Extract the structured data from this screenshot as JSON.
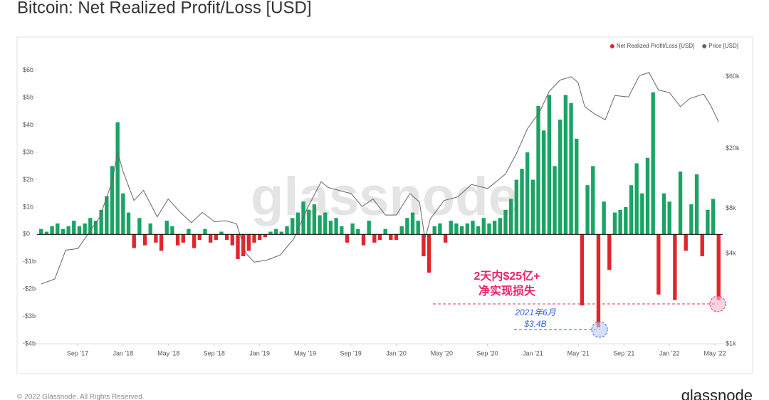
{
  "chart_data": {
    "type": "bar",
    "title": "Bitcoin: Net Realized Profit/Loss [USD]",
    "xlim": [
      2017.37,
      2022.39
    ],
    "xticks": [
      {
        "value": 2017.667,
        "label": "Sep '17"
      },
      {
        "value": 2018.0,
        "label": "Jan '18"
      },
      {
        "value": 2018.333,
        "label": "May '18"
      },
      {
        "value": 2018.667,
        "label": "Sep '18"
      },
      {
        "value": 2019.0,
        "label": "Jan '19"
      },
      {
        "value": 2019.333,
        "label": "May '19"
      },
      {
        "value": 2019.667,
        "label": "Sep '19"
      },
      {
        "value": 2020.0,
        "label": "Jan '20"
      },
      {
        "value": 2020.333,
        "label": "May '20"
      },
      {
        "value": 2020.667,
        "label": "Sep '20"
      },
      {
        "value": 2021.0,
        "label": "Jan '21"
      },
      {
        "value": 2021.333,
        "label": "May '21"
      },
      {
        "value": 2021.667,
        "label": "Sep '21"
      },
      {
        "value": 2022.0,
        "label": "Jan '22"
      },
      {
        "value": 2022.333,
        "label": "May '22"
      }
    ],
    "ylim": [
      -4,
      6.1
    ],
    "yticks": [
      {
        "value": -4,
        "label": "-$4b"
      },
      {
        "value": -3,
        "label": "-$3b"
      },
      {
        "value": -2,
        "label": "-$2b"
      },
      {
        "value": -1,
        "label": "-$1b"
      },
      {
        "value": 0,
        "label": "$0"
      },
      {
        "value": 1,
        "label": "$1b"
      },
      {
        "value": 2,
        "label": "$2b"
      },
      {
        "value": 3,
        "label": "$3b"
      },
      {
        "value": 4,
        "label": "$4b"
      },
      {
        "value": 5,
        "label": "$5b"
      },
      {
        "value": 6,
        "label": "$6b"
      }
    ],
    "y2lim": [
      1000,
      69000
    ],
    "y2scale": "log",
    "y2ticks": [
      {
        "value": 1000,
        "label": "$1k"
      },
      {
        "value": 4000,
        "label": "$4k"
      },
      {
        "value": 8000,
        "label": "$8k"
      },
      {
        "value": 20000,
        "label": "$20k"
      },
      {
        "value": 60000,
        "label": "$60k"
      }
    ],
    "legend": "top-right",
    "series": [
      {
        "name": "Net Realized Profit/Loss [USD]",
        "color": "#e0262b",
        "color_positive": "#1aa364",
        "x": [
          2017.4,
          2017.44,
          2017.48,
          2017.52,
          2017.56,
          2017.6,
          2017.64,
          2017.68,
          2017.72,
          2017.76,
          2017.8,
          2017.84,
          2017.88,
          2017.92,
          2017.96,
          2018,
          2018.04,
          2018.08,
          2018.12,
          2018.16,
          2018.2,
          2018.24,
          2018.28,
          2018.32,
          2018.36,
          2018.4,
          2018.44,
          2018.48,
          2018.52,
          2018.56,
          2018.6,
          2018.64,
          2018.68,
          2018.72,
          2018.76,
          2018.8,
          2018.84,
          2018.88,
          2018.92,
          2018.96,
          2019,
          2019.04,
          2019.08,
          2019.12,
          2019.16,
          2019.2,
          2019.24,
          2019.28,
          2019.32,
          2019.36,
          2019.4,
          2019.44,
          2019.48,
          2019.52,
          2019.56,
          2019.6,
          2019.64,
          2019.68,
          2019.72,
          2019.76,
          2019.8,
          2019.84,
          2019.88,
          2019.92,
          2019.96,
          2020,
          2020.04,
          2020.08,
          2020.12,
          2020.16,
          2020.2,
          2020.24,
          2020.28,
          2020.32,
          2020.36,
          2020.4,
          2020.44,
          2020.48,
          2020.52,
          2020.56,
          2020.6,
          2020.64,
          2020.68,
          2020.72,
          2020.76,
          2020.8,
          2020.84,
          2020.88,
          2020.92,
          2020.96,
          2021,
          2021.04,
          2021.08,
          2021.12,
          2021.16,
          2021.2,
          2021.24,
          2021.28,
          2021.32,
          2021.36,
          2021.4,
          2021.44,
          2021.48,
          2021.52,
          2021.56,
          2021.6,
          2021.64,
          2021.68,
          2021.72,
          2021.76,
          2021.8,
          2021.84,
          2021.88,
          2021.92,
          2021.96,
          2022,
          2022.04,
          2022.08,
          2022.12,
          2022.16,
          2022.2,
          2022.24,
          2022.28,
          2022.32,
          2022.36
        ],
        "values": [
          0.2,
          0.1,
          0.3,
          0.4,
          0.2,
          0.3,
          0.5,
          0.3,
          0.4,
          0.6,
          0.5,
          0.9,
          1.4,
          2.5,
          4.1,
          1.5,
          0.8,
          -0.5,
          0.6,
          -0.4,
          0.4,
          -0.3,
          -0.6,
          0.5,
          0.3,
          -0.4,
          -0.3,
          0.2,
          -0.5,
          -0.2,
          0.2,
          -0.3,
          -0.2,
          0.1,
          -0.2,
          -0.4,
          -0.9,
          -0.8,
          -0.6,
          -0.3,
          -0.2,
          -0.1,
          0.1,
          0.2,
          0.1,
          0.3,
          0.6,
          0.8,
          1.2,
          0.9,
          1.1,
          0.7,
          0.8,
          0.5,
          0.6,
          0.3,
          -0.3,
          0.4,
          0.2,
          -0.4,
          0.5,
          -0.3,
          -0.2,
          0.2,
          -0.2,
          -0.2,
          0.3,
          0.6,
          0.8,
          0.5,
          -0.8,
          -1.4,
          0.3,
          0.4,
          -0.3,
          0.5,
          0.4,
          0.3,
          0.4,
          0.5,
          0.3,
          0.6,
          0.4,
          0.5,
          0.6,
          0.9,
          1.3,
          2.0,
          2.4,
          3.0,
          2.0,
          4.7,
          3.8,
          5.1,
          2.5,
          4.2,
          5.1,
          4.8,
          3.5,
          -2.6,
          1.8,
          2.5,
          -3.4,
          1.2,
          -1.3,
          0.8,
          0.9,
          1.0,
          1.8,
          2.6,
          1.5,
          2.8,
          5.2,
          -2.2,
          1.5,
          1.2,
          -2.4,
          2.3,
          -0.6,
          1.1,
          2.2,
          -0.8,
          0.9,
          1.3,
          -2.4
        ]
      },
      {
        "name": "Price [USD]",
        "color": "#666666",
        "axis": "y2",
        "x": [
          2017.4,
          2017.5,
          2017.58,
          2017.67,
          2017.75,
          2017.83,
          2017.92,
          2017.96,
          2018.0,
          2018.08,
          2018.15,
          2018.25,
          2018.33,
          2018.42,
          2018.5,
          2018.58,
          2018.67,
          2018.75,
          2018.83,
          2018.9,
          2018.96,
          2019.05,
          2019.15,
          2019.25,
          2019.35,
          2019.45,
          2019.5,
          2019.58,
          2019.67,
          2019.75,
          2019.83,
          2019.92,
          2020.0,
          2020.1,
          2020.17,
          2020.21,
          2020.25,
          2020.35,
          2020.45,
          2020.55,
          2020.67,
          2020.8,
          2020.88,
          2020.96,
          2021.05,
          2021.12,
          2021.2,
          2021.28,
          2021.33,
          2021.38,
          2021.45,
          2021.53,
          2021.6,
          2021.7,
          2021.78,
          2021.85,
          2021.92,
          2022.0,
          2022.08,
          2022.15,
          2022.25,
          2022.3,
          2022.36
        ],
        "values": [
          2500,
          2700,
          4200,
          4300,
          5500,
          7000,
          12000,
          19000,
          14000,
          9000,
          10500,
          7000,
          9200,
          7500,
          6400,
          7500,
          6500,
          6600,
          6300,
          4000,
          3500,
          3600,
          3900,
          5000,
          8000,
          12000,
          11000,
          10500,
          10000,
          8200,
          9200,
          7200,
          7200,
          10000,
          8800,
          5000,
          6800,
          9000,
          9500,
          11500,
          10800,
          13500,
          18500,
          27000,
          35000,
          48000,
          57000,
          60000,
          55000,
          38000,
          34000,
          31000,
          45000,
          44000,
          61000,
          64000,
          49000,
          47000,
          38000,
          43000,
          46000,
          39000,
          30000
        ]
      }
    ],
    "annotations": [
      "2天内$25亿+",
      "净实现损失",
      "2021年6月",
      "$3.4B"
    ],
    "watermark": "glassnode",
    "footer": "© 2022 Glassnode. All Rights Reserved.",
    "logo": "glassnode"
  }
}
